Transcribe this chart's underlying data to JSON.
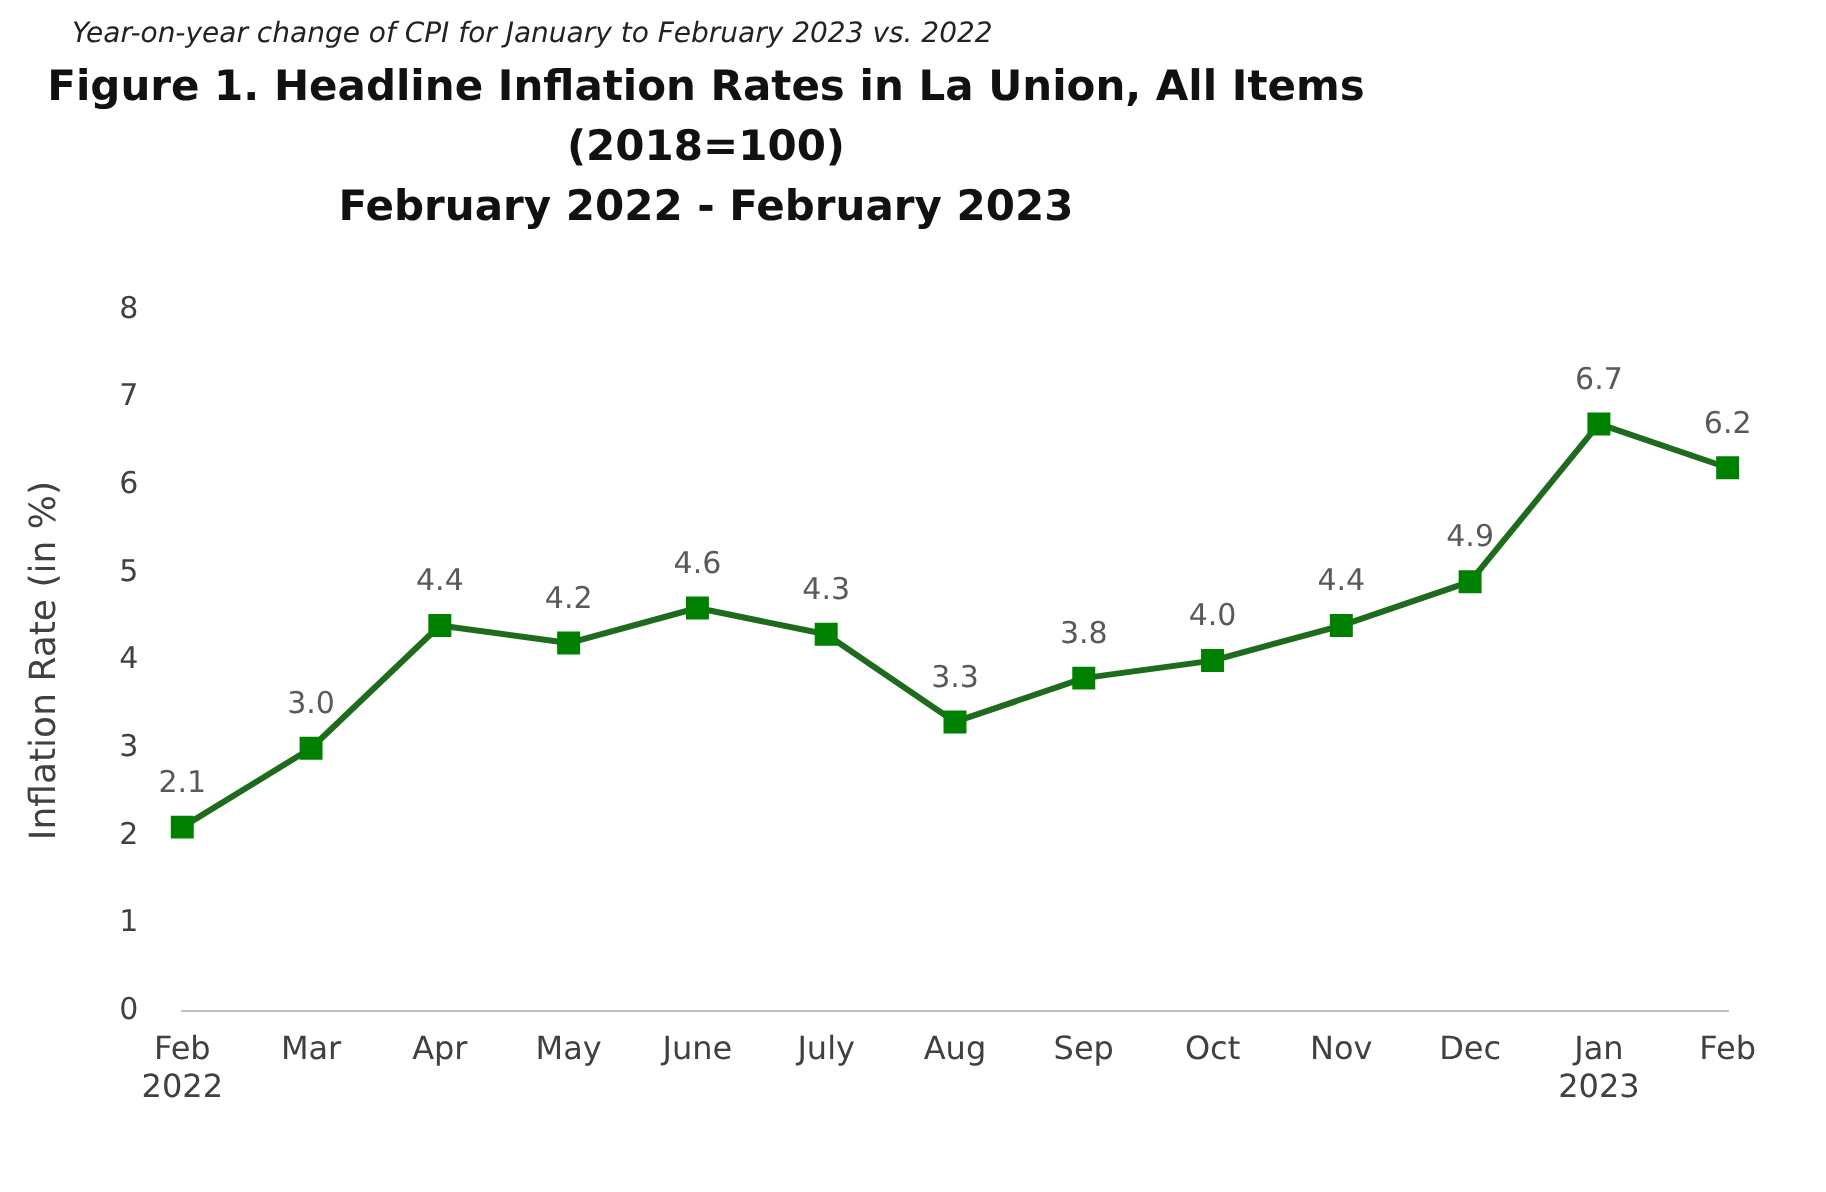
{
  "chart_data": {
    "type": "line",
    "title": "Figure 1. Headline Inflation Rates in La Union, All Items\n(2018=100)",
    "subtitle": "February 2022 - February 2023",
    "ylabel": "Inflation Rate (in %)",
    "annotations": [
      "Year-on-year change of CPI for January to February 2023 vs. 2022"
    ],
    "categories": [
      "Feb\n2022",
      "Mar",
      "Apr",
      "May",
      "June",
      "July",
      "Aug",
      "Sep",
      "Oct",
      "Nov",
      "Dec",
      "Jan\n2023",
      "Feb"
    ],
    "series": [
      {
        "color": "#1e6b1e",
        "values": [
          2.1,
          3.0,
          4.4,
          4.2,
          4.6,
          4.3,
          3.3,
          3.8,
          4.0,
          4.4,
          4.9,
          6.7,
          6.2
        ]
      }
    ],
    "value_labels": [
      "2.1",
      "3.0",
      "4.4",
      "4.2",
      "4.6",
      "4.3",
      "3.3",
      "3.8",
      "4.0",
      "4.4",
      "4.9",
      "6.7",
      "6.2"
    ],
    "ylim": [
      0,
      8
    ],
    "yticks": [
      0,
      1,
      2,
      3,
      4,
      5,
      6,
      7,
      8
    ],
    "grid": false,
    "legend": false,
    "marker": "square",
    "line_style": "solid"
  }
}
